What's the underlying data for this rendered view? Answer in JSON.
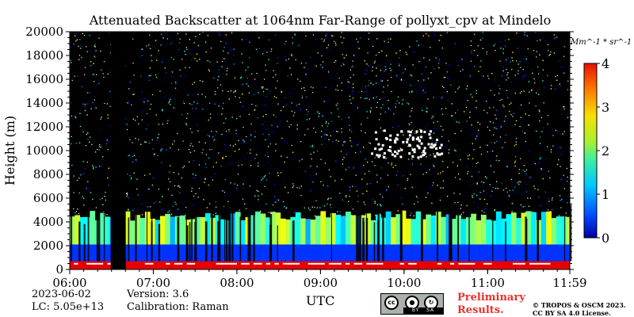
{
  "chart_data": {
    "type": "heatmap",
    "title": "Attenuated Backscatter at 1064nm Far-Range of pollyxt_cpv at Mindelo",
    "xlabel": "UTC",
    "ylabel": "Height (m)",
    "x_ticks": [
      "06:00",
      "07:00",
      "08:00",
      "09:00",
      "10:00",
      "11:00",
      "11:59"
    ],
    "x_tick_hours": [
      6.0,
      7.0,
      8.0,
      9.0,
      10.0,
      11.0,
      11.983
    ],
    "xlim_hours": [
      6.0,
      11.983
    ],
    "y_ticks": [
      0,
      2000,
      4000,
      6000,
      8000,
      10000,
      12000,
      14000,
      16000,
      18000,
      20000
    ],
    "ylim": [
      0,
      20000
    ],
    "colorbar": {
      "label": "Mm^-1 * sr^-1",
      "range": [
        0,
        4
      ],
      "ticks": [
        0,
        1,
        2,
        3,
        4
      ],
      "colormap": "jet"
    },
    "background_color": "#000000",
    "no_data_intervals_hours": [
      [
        6.49,
        6.67
      ]
    ],
    "layers": [
      {
        "name": "near-surface layer",
        "bottom_m": 0,
        "top_m": 700,
        "value": 3.6
      },
      {
        "name": "aerosol layer",
        "bottom_m": 700,
        "top_m": 2100,
        "value": 0.7
      },
      {
        "name": "upper boundary layer",
        "bottom_m": 2100,
        "top_m": 5000,
        "value": 1.8
      },
      {
        "name": "cirrus cloud",
        "x_hours": [
          9.6,
          10.45
        ],
        "bottom_m": 9500,
        "top_m": 11800,
        "value": 4.0
      }
    ]
  },
  "info": {
    "date": "2023-06-02",
    "lc": "LC: 5.05e+13",
    "version": "Version: 3.6",
    "calibration": "Calibration: Raman"
  },
  "branding": {
    "license_badge": [
      "cc",
      "BY",
      "SA"
    ],
    "preliminary": "Preliminary Results.",
    "copyright_line1": "© TROPOS & OSCM 2023.",
    "copyright_line2": "CC BY SA 4.0 License."
  }
}
